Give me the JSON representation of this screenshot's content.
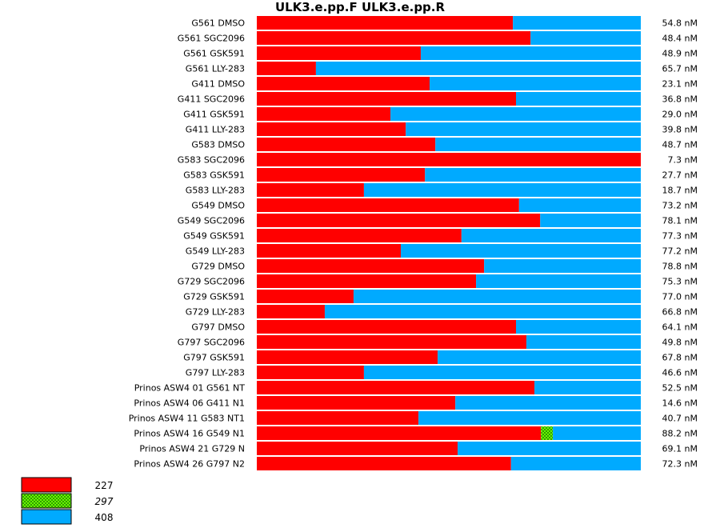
{
  "chart_data": {
    "type": "bar",
    "stacked": "horizontal-100-percent",
    "title": "ULK3.e.pp.F  ULK3.e.pp.R",
    "series": [
      {
        "name": "227",
        "color": "#ff0000",
        "pattern": "solid",
        "style": "normal"
      },
      {
        "name": "297",
        "color": "#66ff00",
        "pattern": "checkered",
        "style": "italic"
      },
      {
        "name": "408",
        "color": "#00aaff",
        "pattern": "solid",
        "style": "normal"
      }
    ],
    "rows": [
      {
        "label": "G561 DMSO",
        "values": [
          66.7,
          0,
          33.3
        ],
        "concentration": "54.8 nM"
      },
      {
        "label": "G561 SGC2096",
        "values": [
          71.3,
          0,
          28.7
        ],
        "concentration": "48.4 nM"
      },
      {
        "label": "G561 GSK591",
        "values": [
          42.7,
          0,
          57.3
        ],
        "concentration": "48.9 nM"
      },
      {
        "label": "G561 LLY-283",
        "values": [
          15.4,
          0,
          84.6
        ],
        "concentration": "65.7 nM"
      },
      {
        "label": "G411 DMSO",
        "values": [
          45.0,
          0,
          55.0
        ],
        "concentration": "23.1 nM"
      },
      {
        "label": "G411 SGC2096",
        "values": [
          67.5,
          0,
          32.5
        ],
        "concentration": "36.8 nM"
      },
      {
        "label": "G411 GSK591",
        "values": [
          34.8,
          0,
          65.2
        ],
        "concentration": "29.0 nM"
      },
      {
        "label": "G411 LLY-283",
        "values": [
          38.8,
          0,
          61.2
        ],
        "concentration": "39.8 nM"
      },
      {
        "label": "G583 DMSO",
        "values": [
          46.5,
          0,
          53.5
        ],
        "concentration": "48.7 nM"
      },
      {
        "label": "G583 SGC2096",
        "values": [
          100,
          0,
          0
        ],
        "concentration": "7.3 nM"
      },
      {
        "label": "G583 GSK591",
        "values": [
          43.8,
          0,
          56.2
        ],
        "concentration": "27.7 nM"
      },
      {
        "label": "G583 LLY-283",
        "values": [
          27.9,
          0,
          72.1
        ],
        "concentration": "18.7 nM"
      },
      {
        "label": "G549 DMSO",
        "values": [
          68.3,
          0,
          31.7
        ],
        "concentration": "73.2 nM"
      },
      {
        "label": "G549 SGC2096",
        "values": [
          73.8,
          0,
          26.2
        ],
        "concentration": "78.1 nM"
      },
      {
        "label": "G549 GSK591",
        "values": [
          53.3,
          0,
          46.7
        ],
        "concentration": "77.3 nM"
      },
      {
        "label": "G549 LLY-283",
        "values": [
          37.5,
          0,
          62.5
        ],
        "concentration": "77.2 nM"
      },
      {
        "label": "G729 DMSO",
        "values": [
          59.2,
          0,
          40.8
        ],
        "concentration": "78.8 nM"
      },
      {
        "label": "G729 SGC2096",
        "values": [
          57.1,
          0,
          42.9
        ],
        "concentration": "75.3 nM"
      },
      {
        "label": "G729 GSK591",
        "values": [
          25.2,
          0,
          74.8
        ],
        "concentration": "77.0 nM"
      },
      {
        "label": "G729 LLY-283",
        "values": [
          17.7,
          0,
          82.3
        ],
        "concentration": "66.8 nM"
      },
      {
        "label": "G797 DMSO",
        "values": [
          67.5,
          0,
          32.5
        ],
        "concentration": "64.1 nM"
      },
      {
        "label": "G797 SGC2096",
        "values": [
          70.2,
          0,
          29.8
        ],
        "concentration": "49.8 nM"
      },
      {
        "label": "G797 GSK591",
        "values": [
          47.1,
          0,
          52.9
        ],
        "concentration": "67.8 nM"
      },
      {
        "label": "G797 LLY-283",
        "values": [
          27.9,
          0,
          72.1
        ],
        "concentration": "46.6 nM"
      },
      {
        "label": "Prinos ASW4 01 G561 NT",
        "values": [
          72.3,
          0,
          27.7
        ],
        "concentration": "52.5 nM"
      },
      {
        "label": "Prinos ASW4 06 G411 N1",
        "values": [
          51.7,
          0,
          48.3
        ],
        "concentration": "14.6 nM"
      },
      {
        "label": "Prinos ASW4 11 G583 NT1",
        "values": [
          42.1,
          0,
          57.9
        ],
        "concentration": "40.7 nM"
      },
      {
        "label": "Prinos ASW4 16 G549 N1",
        "values": [
          74.0,
          3.1,
          22.9
        ],
        "concentration": "88.2 nM"
      },
      {
        "label": "Prinos ASW4 21 G729 N",
        "values": [
          52.3,
          0,
          47.7
        ],
        "concentration": "69.1 nM"
      },
      {
        "label": "Prinos ASW4 26 G797 N2",
        "values": [
          66.2,
          0,
          33.8
        ],
        "concentration": "72.3 nM"
      }
    ],
    "xlim": [
      0,
      100
    ],
    "grid": false,
    "legend": "bottom-left"
  }
}
